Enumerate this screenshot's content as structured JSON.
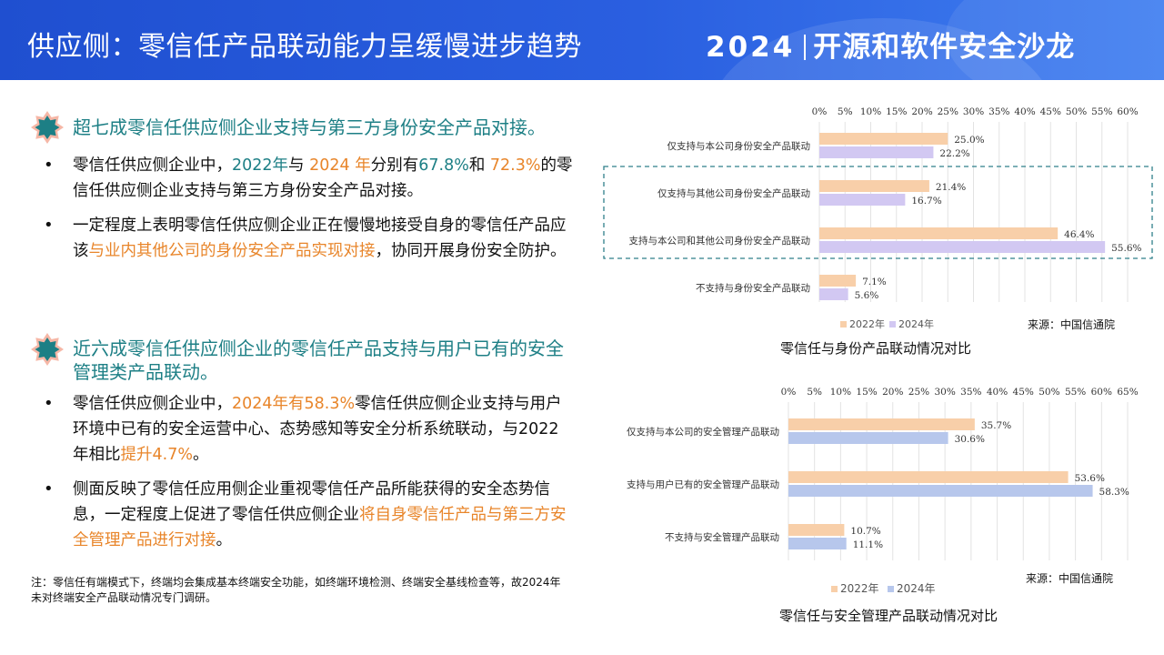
{
  "header": {
    "title": "供应侧：零信任产品联动能力呈缓慢进步趋势",
    "brand_year": "2024",
    "brand_name": "开源和软件安全沙龙"
  },
  "section1": {
    "heading": "超七成零信任供应侧企业支持与第三方身份安全产品对接。",
    "bullets": [
      {
        "parts": [
          "零信任供应侧企业中，",
          "2022年",
          "与 ",
          "2024 年",
          "分别有",
          "67.8%",
          "和 ",
          "72.3%",
          "的零信任供应侧企业支持与第三方身份安全产品对接。"
        ]
      },
      {
        "parts": [
          "一定程度上表明零信任供应侧企业正在慢慢地接受自身的零信任产品应该",
          "与业内其他公司的身份安全产品实现对接",
          "，协同开展身份安全防护。"
        ]
      }
    ]
  },
  "section2": {
    "heading": "近六成零信任供应侧企业的零信任产品支持与用户已有的安全管理类产品联动。",
    "bullets": [
      {
        "parts": [
          "零信任供应侧企业中，",
          "2024年有58.3%",
          "零信任供应侧企业支持与用户环境中已有的安全运营中心、态势感知等安全分析系统联动，与2022年相比",
          "提升4.7%",
          "。"
        ]
      },
      {
        "parts": [
          "侧面反映了零信任应用侧企业重视零信任产品所能获得的安全态势信息，一定程度上促进了零信任供应侧企业",
          "将自身零信任产品与第三方安全管理产品进行对接",
          "。"
        ]
      }
    ]
  },
  "note": "注：零信任有端模式下，终端均会集成基本终端安全功能，如终端环境检测、终端安全基线检查等，故2024年未对终端安全产品联动情况专门调研。",
  "colors": {
    "series_2022": "#f8cfa9",
    "series_2024_chart1": "#d2c8f2",
    "series_2024_chart2": "#b7c7ec",
    "teal": "#1d7f85",
    "orange": "#e8852a"
  },
  "chart_data": [
    {
      "type": "bar",
      "orientation": "horizontal",
      "title": "零信任与身份产品联动情况对比",
      "source": "来源：中国信通院",
      "categories": [
        "仅支持与本公司身份安全产品联动",
        "仅支持与其他公司身份安全产品联动",
        "支持与本公司和其他公司身份安全产品联动",
        "不支持与身份安全产品联动"
      ],
      "series": [
        {
          "name": "2022年",
          "values": [
            25.0,
            21.4,
            46.4,
            7.1
          ]
        },
        {
          "name": "2024年",
          "values": [
            22.2,
            16.7,
            55.6,
            5.6
          ]
        }
      ],
      "xlim": [
        0,
        60
      ],
      "ticks": [
        "0%",
        "5%",
        "10%",
        "15%",
        "20%",
        "25%",
        "30%",
        "35%",
        "40%",
        "45%",
        "50%",
        "55%",
        "60%"
      ],
      "value_labels": [
        [
          "25.0%",
          "21.4%",
          "46.4%",
          "7.1%"
        ],
        [
          "22.2%",
          "16.7%",
          "55.6%",
          "5.6%"
        ]
      ],
      "legend": "bottom-left",
      "grid": true,
      "highlight": "dashed box around categories 2-3"
    },
    {
      "type": "bar",
      "orientation": "horizontal",
      "title": "零信任与安全管理产品联动情况对比",
      "source": "来源：中国信通院",
      "categories": [
        "仅支持与本公司的安全管理产品联动",
        "支持与用户已有的安全管理产品联动",
        "不支持与安全管理产品联动"
      ],
      "series": [
        {
          "name": "2022年",
          "values": [
            35.7,
            53.6,
            10.7
          ]
        },
        {
          "name": "2024年",
          "values": [
            30.6,
            58.3,
            11.1
          ]
        }
      ],
      "xlim": [
        0,
        65
      ],
      "ticks": [
        "0%",
        "5%",
        "10%",
        "15%",
        "20%",
        "25%",
        "30%",
        "35%",
        "40%",
        "45%",
        "50%",
        "55%",
        "60%",
        "65%"
      ],
      "value_labels": [
        [
          "35.7%",
          "53.6%",
          "10.7%"
        ],
        [
          "30.6%",
          "58.3%",
          "11.1%"
        ]
      ],
      "legend": "bottom-left",
      "grid": true
    }
  ]
}
